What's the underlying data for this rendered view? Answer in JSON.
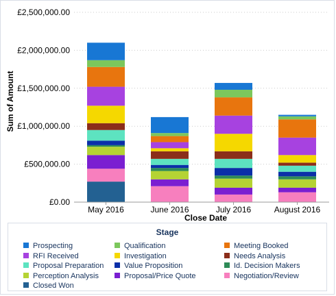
{
  "chart_data": {
    "type": "bar",
    "stacked": true,
    "title": "",
    "xlabel": "Close Date",
    "ylabel": "Sum of Amount",
    "ylim": [
      0,
      2500000
    ],
    "yticks": [
      0,
      500000,
      1000000,
      1500000,
      2000000,
      2500000
    ],
    "ytick_labels": [
      "£0.00",
      "£500,000.00",
      "£1,000,000.00",
      "£1,500,000.00",
      "£2,000,000.00",
      "£2,500,000.00"
    ],
    "grid": true,
    "legend_position": "bottom",
    "legend_title": "Stage",
    "categories": [
      "May 2016",
      "June 2016",
      "July 2016",
      "August 2016"
    ],
    "series": [
      {
        "name": "Closed Won",
        "color": "#236192",
        "values": [
          270000,
          0,
          0,
          0
        ]
      },
      {
        "name": "Negotiation/Review",
        "color": "#f77fbe",
        "values": [
          170000,
          210000,
          100000,
          130000
        ]
      },
      {
        "name": "Proposal/Price Quote",
        "color": "#7a1fd1",
        "values": [
          180000,
          90000,
          90000,
          60000
        ]
      },
      {
        "name": "Perception Analysis",
        "color": "#b5d334",
        "values": [
          110000,
          110000,
          120000,
          110000
        ]
      },
      {
        "name": "Id. Decision Makers",
        "color": "#2e8b57",
        "values": [
          20000,
          40000,
          40000,
          40000
        ]
      },
      {
        "name": "Value Proposition",
        "color": "#0b2fa8",
        "values": [
          60000,
          40000,
          100000,
          60000
        ]
      },
      {
        "name": "Proposal Preparation",
        "color": "#5de3c0",
        "values": [
          140000,
          80000,
          120000,
          80000
        ]
      },
      {
        "name": "Needs Analysis",
        "color": "#8b2e1a",
        "values": [
          90000,
          100000,
          100000,
          40000
        ]
      },
      {
        "name": "Investigation",
        "color": "#f5d800",
        "values": [
          230000,
          40000,
          230000,
          100000
        ]
      },
      {
        "name": "RFI Received",
        "color": "#a742e0",
        "values": [
          250000,
          80000,
          240000,
          230000
        ]
      },
      {
        "name": "Meeting Booked",
        "color": "#e8750e",
        "values": [
          260000,
          80000,
          240000,
          240000
        ]
      },
      {
        "name": "Qualification",
        "color": "#7cc75c",
        "values": [
          90000,
          40000,
          100000,
          40000
        ]
      },
      {
        "name": "Prospecting",
        "color": "#1877d4",
        "values": [
          230000,
          210000,
          90000,
          20000
        ]
      }
    ]
  },
  "legend": {
    "title": "Stage",
    "items": [
      {
        "label": "Prospecting",
        "color": "#1877d4"
      },
      {
        "label": "Qualification",
        "color": "#7cc75c"
      },
      {
        "label": "Meeting Booked",
        "color": "#e8750e"
      },
      {
        "label": "RFI Received",
        "color": "#a742e0"
      },
      {
        "label": "Investigation",
        "color": "#f5d800"
      },
      {
        "label": "Needs Analysis",
        "color": "#8b2e1a"
      },
      {
        "label": "Proposal Preparation",
        "color": "#5de3c0"
      },
      {
        "label": "Value Proposition",
        "color": "#0b2fa8"
      },
      {
        "label": "Id. Decision Makers",
        "color": "#2e8b57"
      },
      {
        "label": "Perception Analysis",
        "color": "#b5d334"
      },
      {
        "label": "Proposal/Price Quote",
        "color": "#7a1fd1"
      },
      {
        "label": "Negotiation/Review",
        "color": "#f77fbe"
      },
      {
        "label": "Closed Won",
        "color": "#236192"
      }
    ]
  }
}
